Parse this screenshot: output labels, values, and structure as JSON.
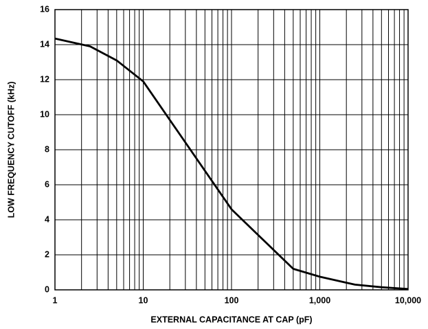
{
  "chart_data": {
    "type": "line",
    "xlabel": "EXTERNAL CAPACITANCE AT CAP (pF)",
    "ylabel": "LOW FREQUENCY CUTOFF (kHz)",
    "x": [
      1,
      2.5,
      5,
      10,
      100,
      500,
      1000,
      2500,
      5000,
      10000
    ],
    "series": [
      {
        "name": "cutoff",
        "color": "#000000",
        "values": [
          14.35,
          13.9,
          13.1,
          11.9,
          4.6,
          1.2,
          0.75,
          0.3,
          0.15,
          0.05
        ]
      }
    ],
    "xscale": "log",
    "xlim": [
      1,
      10000
    ],
    "xticks": [
      1,
      10,
      100,
      {
        "value": 1000,
        "label": "1,000"
      },
      {
        "value": 10000,
        "label": "10,000"
      }
    ],
    "xminor_ticks": [
      2,
      3,
      4,
      5,
      6,
      7,
      8,
      9,
      20,
      30,
      40,
      50,
      60,
      70,
      80,
      90,
      200,
      300,
      400,
      500,
      600,
      700,
      800,
      900,
      2000,
      3000,
      4000,
      5000,
      6000,
      7000,
      8000,
      9000
    ],
    "ylim": [
      0,
      16
    ],
    "yticks": [
      0,
      2,
      4,
      6,
      8,
      10,
      12,
      14,
      16
    ],
    "grid": true
  }
}
